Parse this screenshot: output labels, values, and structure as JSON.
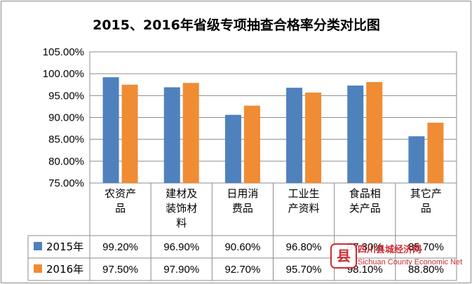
{
  "chart_data": {
    "type": "bar",
    "title": "2015、2016年省级专项抽查合格率分类对比图",
    "categories": [
      [
        "农资产",
        "品"
      ],
      [
        "建材及",
        "装饰材",
        "料"
      ],
      [
        "日用消",
        "费品"
      ],
      [
        "工业生",
        "产资料"
      ],
      [
        "食品相",
        "关产品"
      ],
      [
        "其它产",
        "品"
      ]
    ],
    "y_ticks": [
      "75.00%",
      "80.00%",
      "85.00%",
      "90.00%",
      "95.00%",
      "100.00%",
      "105.00%"
    ],
    "ylim": [
      75,
      105
    ],
    "grid": true,
    "legend": "data-table",
    "series": [
      {
        "name": "2015年",
        "color": "#4f81bd",
        "values": [
          99.2,
          96.9,
          90.6,
          96.8,
          97.3,
          85.7
        ],
        "labels": [
          "99.20%",
          "96.90%",
          "90.60%",
          "96.80%",
          "97.30%",
          "85.70%"
        ]
      },
      {
        "name": "2016年",
        "color": "#f08c34",
        "values": [
          97.5,
          97.9,
          92.7,
          95.7,
          98.1,
          88.8
        ],
        "labels": [
          "97.50%",
          "97.90%",
          "92.70%",
          "95.70%",
          "98.10%",
          "88.80%"
        ]
      }
    ]
  },
  "watermark": {
    "logo_char": "县",
    "name": "四川县城经济网",
    "name_en": "Sichuan County Economic Net"
  }
}
